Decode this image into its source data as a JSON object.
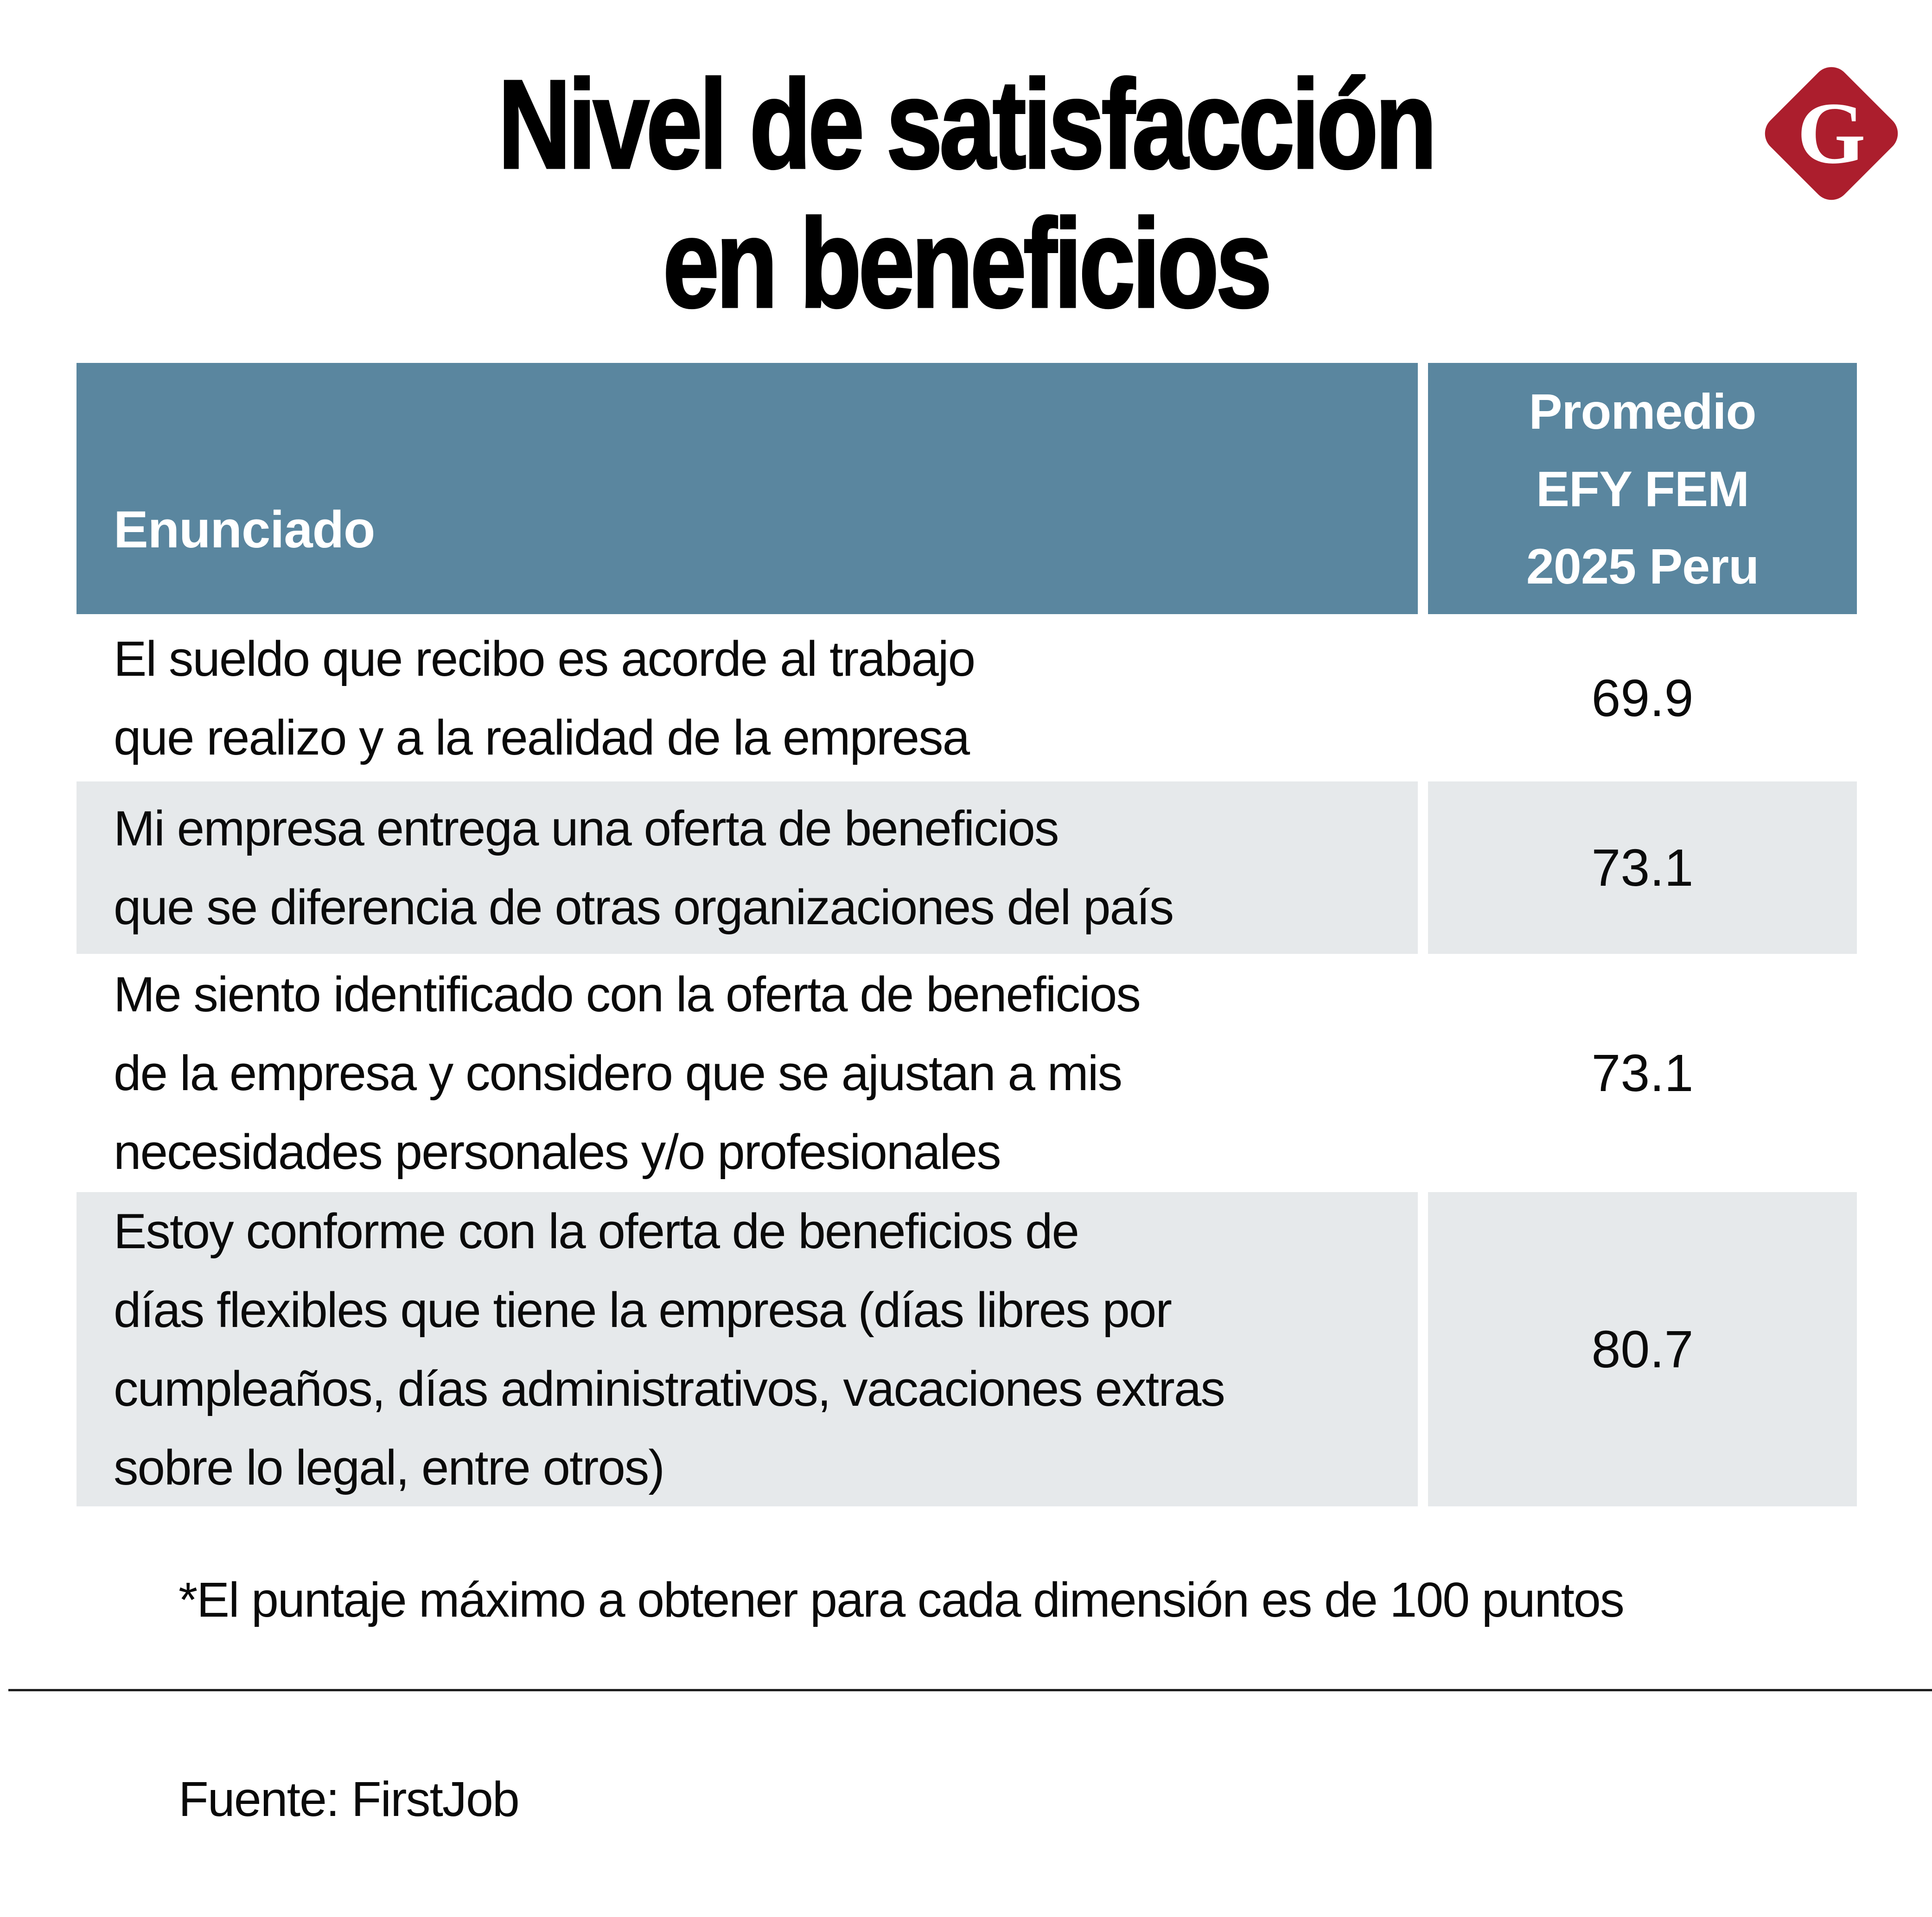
{
  "title": {
    "line1": "Nivel de satisfacción",
    "line2": "en beneficios"
  },
  "logo": {
    "letter": "G",
    "bg_color": "#AC1E2D"
  },
  "table": {
    "header": {
      "col1": "Enunciado",
      "col2_lines": [
        "Promedio",
        "EFY FEM",
        "2025 Peru"
      ]
    },
    "rows": [
      {
        "lines": [
          "El sueldo que recibo es acorde al trabajo",
          "que realizo y a la realidad de la empresa"
        ],
        "value": "69.9"
      },
      {
        "lines": [
          "Mi empresa entrega una oferta de beneficios",
          "que se diferencia de otras organizaciones del país"
        ],
        "value": "73.1"
      },
      {
        "lines": [
          "Me siento identificado con la oferta de beneficios",
          "de la empresa y considero que se ajustan a mis",
          "necesidades personales y/o profesionales"
        ],
        "value": "73.1"
      },
      {
        "lines": [
          "Estoy conforme con la oferta de beneficios de",
          "días flexibles que tiene la empresa (días libres por",
          "cumpleaños, días administrativos, vacaciones extras",
          "sobre lo legal, entre otros)"
        ],
        "value": "80.7"
      }
    ]
  },
  "footnote": "*El puntaje máximo a obtener para cada dimensión es de 100 puntos",
  "source": "Fuente: FirstJob",
  "colors": {
    "header_bg": "#5A869F",
    "row_alt_bg": "#E6E9EB",
    "logo_red": "#AC1E2D",
    "divider": "#1F1F1F"
  },
  "chart_data": {
    "type": "table",
    "title": "Nivel de satisfacción en beneficios",
    "columns": [
      "Enunciado",
      "Promedio EFY FEM 2025 Peru"
    ],
    "rows": [
      [
        "El sueldo que recibo es acorde al trabajo que realizo y a la realidad de la empresa",
        69.9
      ],
      [
        "Mi empresa entrega una oferta de beneficios que se diferencia de otras organizaciones del país",
        73.1
      ],
      [
        "Me siento identificado con la oferta de beneficios de la empresa y considero que se ajustan a mis necesidades personales y/o profesionales",
        73.1
      ],
      [
        "Estoy conforme con la oferta de beneficios de días flexibles que tiene la empresa (días libres por cumpleaños, días administrativos, vacaciones extras sobre lo legal, entre otros)",
        80.7
      ]
    ],
    "value_range": [
      0,
      100
    ],
    "note": "*El puntaje máximo a obtener para cada dimensión es de 100 puntos",
    "source": "Fuente: FirstJob"
  }
}
